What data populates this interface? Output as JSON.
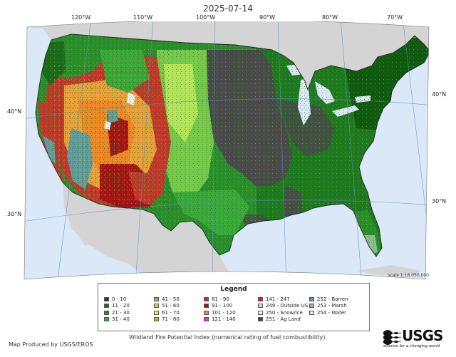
{
  "map": {
    "date_title": "2025-07-14",
    "longitude_labels": [
      "120°W",
      "110°W",
      "100°W",
      "90°W",
      "80°W",
      "70°W"
    ],
    "latitude_labels_left": [
      "40°N",
      "30°N"
    ],
    "latitude_labels_right": [
      "40°N",
      "30°N"
    ],
    "scale_text": "scale 1:18,050,000"
  },
  "legend": {
    "title": "Legend",
    "columns": [
      [
        {
          "label": "0 - 10",
          "color": "#0b4d0b"
        },
        {
          "label": "11 - 20",
          "color": "#1a6b1a"
        },
        {
          "label": "21 - 30",
          "color": "#238b23"
        },
        {
          "label": "31 - 40",
          "color": "#3aa83a"
        }
      ],
      [
        {
          "label": "41 - 50",
          "color": "#77c94b"
        },
        {
          "label": "51 - 60",
          "color": "#b5e35a"
        },
        {
          "label": "61 - 70",
          "color": "#f2e84a"
        },
        {
          "label": "71 - 80",
          "color": "#e8a33a"
        }
      ],
      [
        {
          "label": "81 - 90",
          "color": "#c0392b"
        },
        {
          "label": "91 - 100",
          "color": "#a31515"
        },
        {
          "label": "101 - 120",
          "color": "#f08a24"
        },
        {
          "label": "121 - 140",
          "color": "#d63fd6"
        }
      ],
      [
        {
          "label": "141 - 247",
          "color": "#e31a1a"
        },
        {
          "label": "249 - Outside US",
          "color": "#d9d9d9"
        },
        {
          "label": "250 - Snow/Ice",
          "color": "#f5f5f5"
        },
        {
          "label": "251 - Ag Land",
          "color": "#4a4a4a"
        }
      ],
      [
        {
          "label": "252 - Barren",
          "color": "#5f9ea0"
        },
        {
          "label": "253 - Marsh",
          "color": "#8fbc8f"
        },
        {
          "label": "254 - Water",
          "color": "#dbe8f7"
        }
      ]
    ]
  },
  "caption": "Wildland Fire Potential Index (numerical rating of fuel combustibility).",
  "credit": "Map Produced by USGS/EROS",
  "logo": {
    "word": "USGS",
    "tagline": "science for a changing world"
  },
  "colors": {
    "ocean": "#dbe8f7",
    "outside_us": "#d4d4d4",
    "graticule": "#5d8fc4"
  }
}
